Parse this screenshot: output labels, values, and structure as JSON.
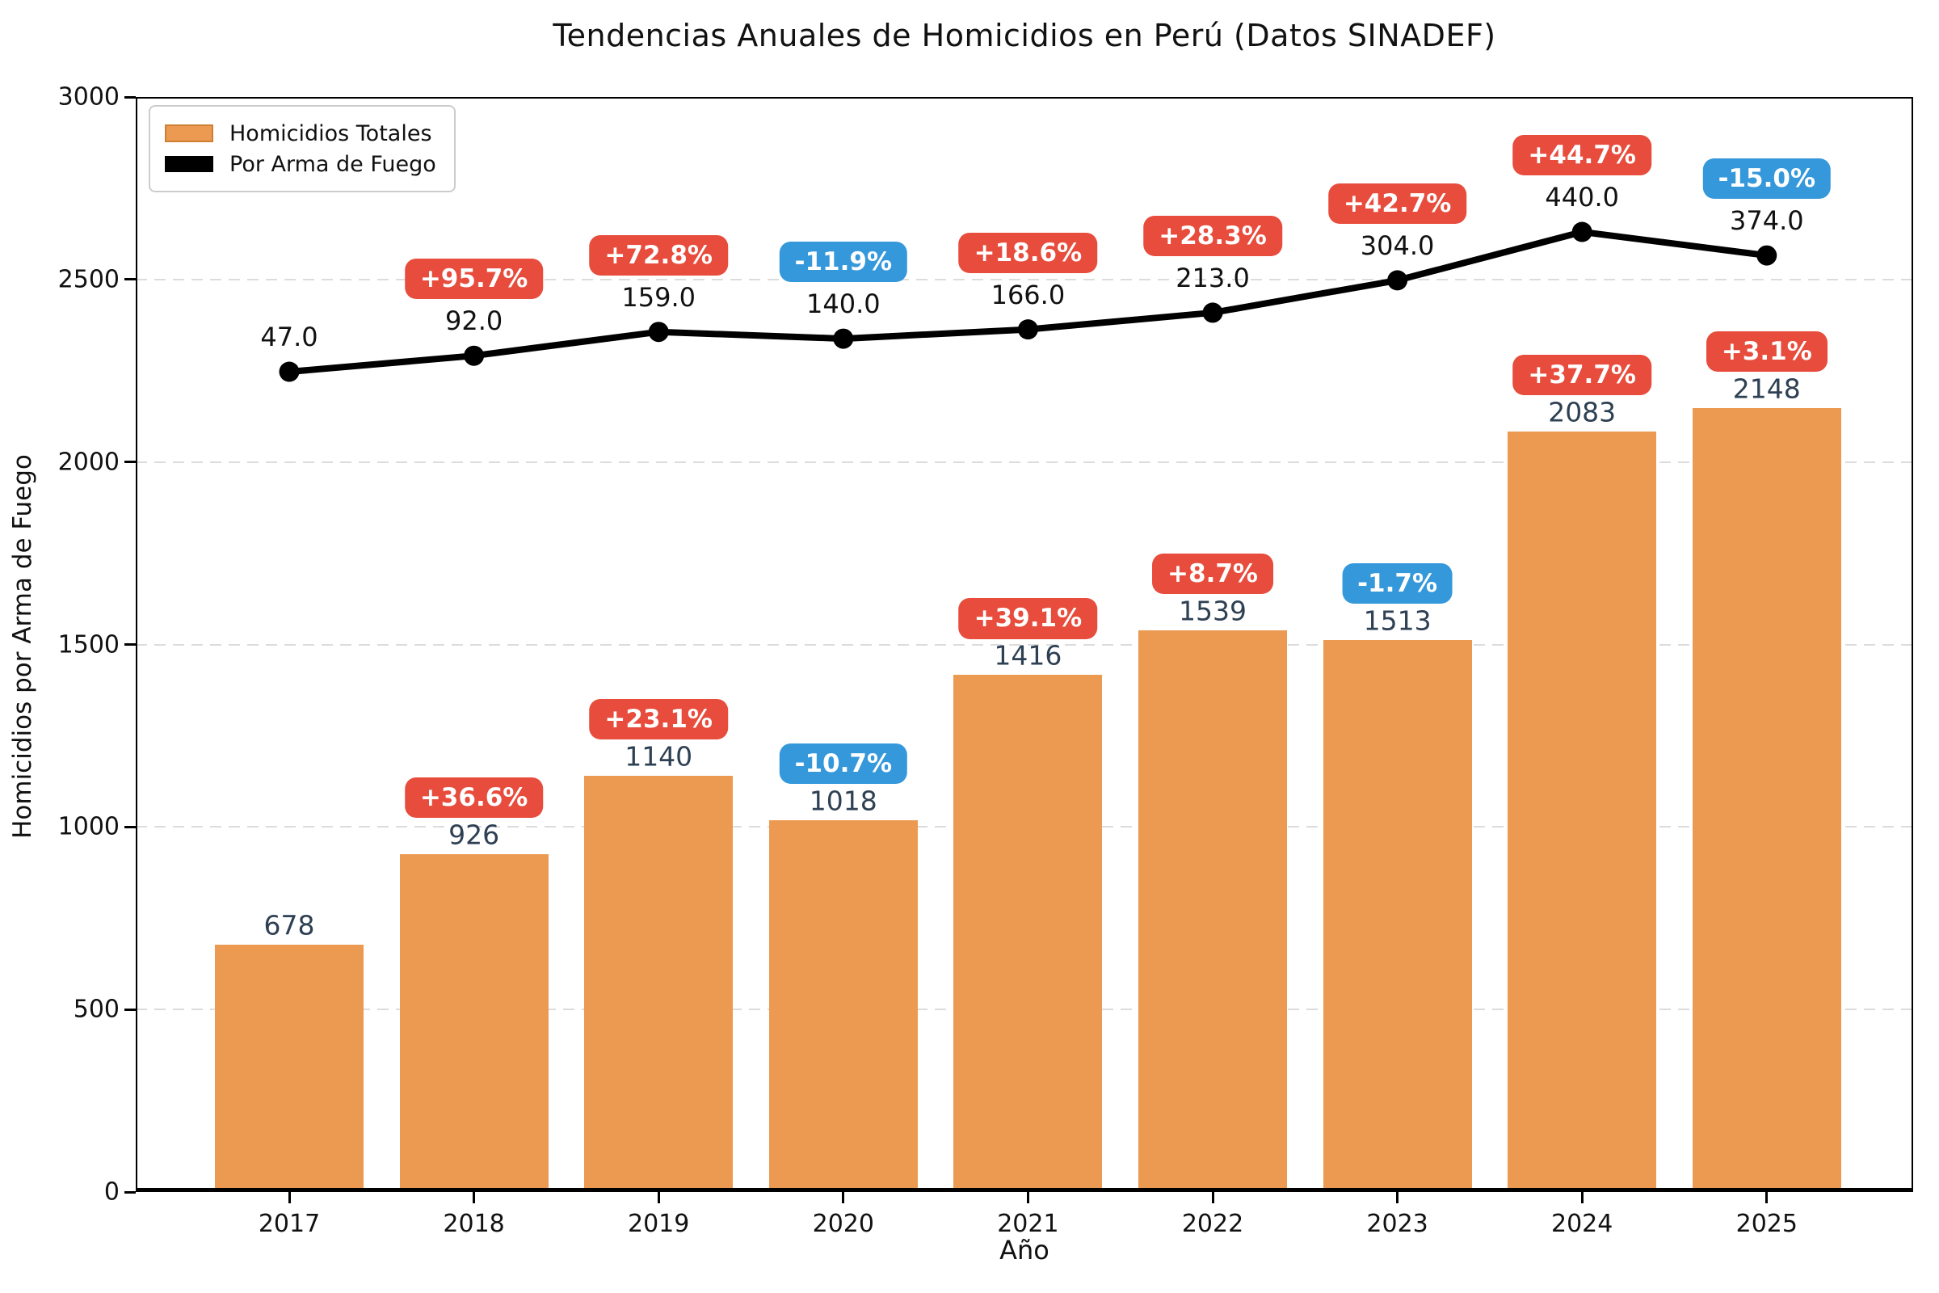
{
  "chart_data": {
    "type": "bar",
    "title": "Tendencias Anuales de Homicidios en Perú (Datos SINADEF)",
    "xlabel": "Año",
    "ylabel": "Homicidios por Arma de Fuego",
    "categories": [
      "2017",
      "2018",
      "2019",
      "2020",
      "2021",
      "2022",
      "2023",
      "2024",
      "2025"
    ],
    "ylim": [
      0,
      3000
    ],
    "y_ticks": [
      0,
      500,
      1000,
      1500,
      2000,
      2500,
      3000
    ],
    "grid": "horizontal-dashed",
    "legend_position": "upper-left",
    "series": [
      {
        "name": "Homicidios Totales",
        "type": "bar",
        "color": "#EC9A51",
        "values": [
          678,
          926,
          1140,
          1018,
          1416,
          1539,
          1513,
          2083,
          2148
        ],
        "value_labels": [
          "678",
          "926",
          "1140",
          "1018",
          "1416",
          "1539",
          "1513",
          "2083",
          "2148"
        ],
        "pct_change": [
          null,
          "+36.6%",
          "+23.1%",
          "-10.7%",
          "+39.1%",
          "+8.7%",
          "-1.7%",
          "+37.7%",
          "+3.1%"
        ]
      },
      {
        "name": "Por Arma de Fuego",
        "type": "line",
        "color": "#000000",
        "values": [
          47,
          92,
          159,
          140,
          166,
          213,
          304,
          440,
          374
        ],
        "value_labels": [
          "47.0",
          "92.0",
          "159.0",
          "140.0",
          "166.0",
          "213.0",
          "304.0",
          "440.0",
          "374.0"
        ],
        "pct_change": [
          null,
          "+95.7%",
          "+72.8%",
          "-11.9%",
          "+18.6%",
          "+28.3%",
          "+42.7%",
          "+44.7%",
          "-15.0%"
        ]
      }
    ],
    "badge_colors": {
      "increase": "#E74C3C",
      "decrease": "#3598DB"
    },
    "label_colors": {
      "bar_value": "#2E4053",
      "line_value": "#111111"
    }
  }
}
